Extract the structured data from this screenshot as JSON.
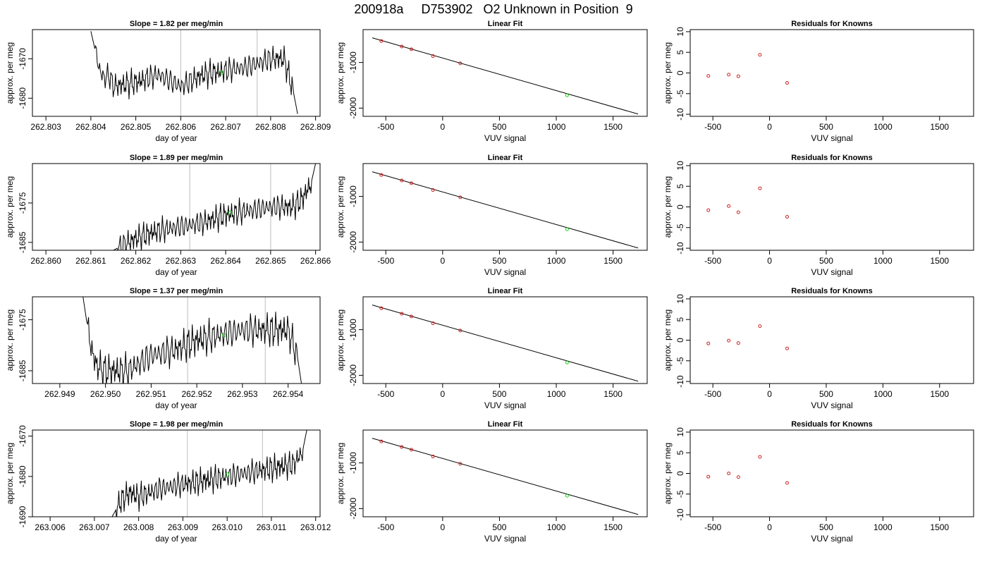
{
  "figure": {
    "title": "200918a     D753902   O2 Unknown in Position  9"
  },
  "colors": {
    "trace": "#000000",
    "known": "#cc2222",
    "unknown": "#22cc22",
    "gridline": "#c8c8c8",
    "fit": "#000000"
  },
  "chart_data": [
    {
      "type": "line",
      "row": 1,
      "col": 1,
      "title": "Slope =  1.82  per meg/min",
      "xlabel": "day of year",
      "ylabel": "approx. per meg",
      "xlim": [
        262.8027,
        262.8091
      ],
      "ylim": [
        -1684.6,
        -1662.6
      ],
      "xticks": [
        "262.803",
        "262.804",
        "262.805",
        "262.806",
        "262.807",
        "262.808",
        "262.809"
      ],
      "yticks": [
        "-1680",
        "-1670"
      ],
      "vlines": [
        262.806,
        262.8077
      ],
      "series": [
        {
          "x": [
            262.804,
            262.8041,
            262.8042,
            262.8043,
            262.8044,
            262.8045,
            262.805,
            262.8055,
            262.806,
            262.8065,
            262.807,
            262.8075,
            262.808,
            262.8083,
            262.8085,
            262.8086
          ],
          "y": [
            -1663,
            -1668,
            -1673,
            -1675,
            -1674,
            -1677,
            -1676,
            -1674,
            -1677,
            -1674,
            -1673,
            -1672,
            -1670,
            -1670,
            -1678,
            -1684
          ]
        }
      ],
      "unknown_point": {
        "x": 262.8069,
        "y": -1673.5
      }
    },
    {
      "type": "scatter",
      "row": 1,
      "col": 2,
      "title": "Linear Fit",
      "xlabel": "VUV signal",
      "ylabel": "approx. per meg",
      "xlim": [
        -700,
        1800
      ],
      "ylim": [
        -2180,
        -280
      ],
      "xticks": [
        "-500",
        "0",
        "500",
        "1000",
        "1500"
      ],
      "yticks": [
        "-1000",
        "-2000"
      ],
      "knowns": {
        "x": [
          -540,
          -360,
          -275,
          -85,
          155
        ],
        "y": [
          -530,
          -650,
          -710,
          -860,
          -1020
        ]
      },
      "unknown": {
        "x": 1095,
        "y": -1720
      },
      "fit_line": {
        "x": [
          -620,
          1720
        ],
        "y": [
          -460,
          -2130
        ]
      }
    },
    {
      "type": "scatter",
      "row": 1,
      "col": 3,
      "title": "Residuals for Knowns",
      "xlabel": "VUV signal",
      "ylabel": "approx. per meg",
      "xlim": [
        -700,
        1800
      ],
      "ylim": [
        -10.5,
        10.5
      ],
      "xticks": [
        "-500",
        "0",
        "500",
        "1000",
        "1500"
      ],
      "yticks": [
        "-10",
        "-5",
        "0",
        "5",
        "10"
      ],
      "knowns": {
        "x": [
          -540,
          -360,
          -275,
          -85,
          155
        ],
        "y": [
          -0.7,
          -0.4,
          -0.8,
          4.4,
          -2.4
        ]
      }
    },
    {
      "type": "line",
      "row": 2,
      "col": 1,
      "title": "Slope =  1.89  per meg/min",
      "xlabel": "day of year",
      "ylabel": "approx. per meg",
      "xlim": [
        262.8597,
        262.8661
      ],
      "ylim": [
        -1687,
        -1665
      ],
      "xticks": [
        "262.860",
        "262.861",
        "262.862",
        "262.863",
        "262.864",
        "262.865",
        "262.866"
      ],
      "yticks": [
        "-1685",
        "-1675"
      ],
      "vlines": [
        262.8632,
        262.865
      ],
      "series": [
        {
          "x": [
            262.8615,
            262.862,
            262.8625,
            262.863,
            262.8635,
            262.864,
            262.8645,
            262.865,
            262.8655,
            262.8657,
            262.8659,
            262.866
          ],
          "y": [
            -1687,
            -1684,
            -1682,
            -1681,
            -1680,
            -1678,
            -1677,
            -1676,
            -1676,
            -1674,
            -1670,
            -1665
          ]
        }
      ],
      "unknown_point": {
        "x": 262.8641,
        "y": -1677.5
      }
    },
    {
      "type": "scatter",
      "row": 2,
      "col": 2,
      "title": "Linear Fit",
      "xlabel": "VUV signal",
      "ylabel": "approx. per meg",
      "xlim": [
        -700,
        1800
      ],
      "ylim": [
        -2180,
        -280
      ],
      "xticks": [
        "-500",
        "0",
        "500",
        "1000",
        "1500"
      ],
      "yticks": [
        "-1000",
        "-2000"
      ],
      "knowns": {
        "x": [
          -540,
          -360,
          -275,
          -85,
          155
        ],
        "y": [
          -530,
          -650,
          -710,
          -860,
          -1020
        ]
      },
      "unknown": {
        "x": 1095,
        "y": -1720
      },
      "fit_line": {
        "x": [
          -620,
          1720
        ],
        "y": [
          -460,
          -2130
        ]
      }
    },
    {
      "type": "scatter",
      "row": 2,
      "col": 3,
      "title": "Residuals for Knowns",
      "xlabel": "VUV signal",
      "ylabel": "approx. per meg",
      "xlim": [
        -700,
        1800
      ],
      "ylim": [
        -10.5,
        10.5
      ],
      "xticks": [
        "-500",
        "0",
        "500",
        "1000",
        "1500"
      ],
      "yticks": [
        "-10",
        "-5",
        "0",
        "5",
        "10"
      ],
      "knowns": {
        "x": [
          -540,
          -360,
          -275,
          -85,
          155
        ],
        "y": [
          -0.8,
          0.2,
          -1.3,
          4.5,
          -2.4
        ]
      }
    },
    {
      "type": "line",
      "row": 3,
      "col": 1,
      "title": "Slope =  1.37  per meg/min",
      "xlabel": "day of year",
      "ylabel": "approx. per meg",
      "xlim": [
        262.9484,
        262.9547
      ],
      "ylim": [
        -1687.5,
        -1670.5
      ],
      "xticks": [
        "262.949",
        "262.950",
        "262.951",
        "262.952",
        "262.953",
        "262.954"
      ],
      "yticks": [
        "-1685",
        "-1675"
      ],
      "vlines": [
        262.9518,
        262.9535
      ],
      "series": [
        {
          "x": [
            262.9495,
            262.9496,
            262.9497,
            262.9498,
            262.95,
            262.9505,
            262.951,
            262.9515,
            262.952,
            262.9525,
            262.953,
            262.9535,
            262.954,
            262.9542,
            262.9543
          ],
          "y": [
            -1670,
            -1676,
            -1681,
            -1684,
            -1685,
            -1685,
            -1682,
            -1681,
            -1679,
            -1678,
            -1677,
            -1677,
            -1677,
            -1682,
            -1688
          ]
        }
      ],
      "unknown_point": {
        "x": 262.9526,
        "y": -1678
      }
    },
    {
      "type": "scatter",
      "row": 3,
      "col": 2,
      "title": "Linear Fit",
      "xlabel": "VUV signal",
      "ylabel": "approx. per meg",
      "xlim": [
        -700,
        1800
      ],
      "ylim": [
        -2180,
        -280
      ],
      "xticks": [
        "-500",
        "0",
        "500",
        "1000",
        "1500"
      ],
      "yticks": [
        "-1000",
        "-2000"
      ],
      "knowns": {
        "x": [
          -540,
          -360,
          -275,
          -85,
          155
        ],
        "y": [
          -530,
          -650,
          -710,
          -860,
          -1020
        ]
      },
      "unknown": {
        "x": 1095,
        "y": -1720
      },
      "fit_line": {
        "x": [
          -620,
          1720
        ],
        "y": [
          -460,
          -2130
        ]
      }
    },
    {
      "type": "scatter",
      "row": 3,
      "col": 3,
      "title": "Residuals for Knowns",
      "xlabel": "VUV signal",
      "ylabel": "approx. per meg",
      "xlim": [
        -700,
        1800
      ],
      "ylim": [
        -10.5,
        10.5
      ],
      "xticks": [
        "-500",
        "0",
        "500",
        "1000",
        "1500"
      ],
      "yticks": [
        "-10",
        "-5",
        "0",
        "5",
        "10"
      ],
      "knowns": {
        "x": [
          -540,
          -360,
          -275,
          -85,
          155
        ],
        "y": [
          -0.8,
          -0.1,
          -0.7,
          3.4,
          -2.0
        ]
      }
    },
    {
      "type": "line",
      "row": 4,
      "col": 1,
      "title": "Slope =  1.98  per meg/min",
      "xlabel": "day of year",
      "ylabel": "approx. per meg",
      "xlim": [
        263.0056,
        263.0121
      ],
      "ylim": [
        -1690,
        -1668.5
      ],
      "xticks": [
        "263.006",
        "263.007",
        "263.008",
        "263.009",
        "263.010",
        "263.011",
        "263.012"
      ],
      "yticks": [
        "-1690",
        "-1680",
        "-1670"
      ],
      "vlines": [
        263.0091,
        263.0108
      ],
      "series": [
        {
          "x": [
            263.0074,
            263.0076,
            263.0078,
            263.008,
            263.0085,
            263.009,
            263.0095,
            263.01,
            263.0105,
            263.011,
            263.0115,
            263.0117,
            263.0118
          ],
          "y": [
            -1690,
            -1686,
            -1684,
            -1685,
            -1683,
            -1682,
            -1681,
            -1680,
            -1679,
            -1678,
            -1677,
            -1674,
            -1668.5
          ]
        }
      ],
      "unknown_point": {
        "x": 263.01,
        "y": -1679.5
      }
    },
    {
      "type": "scatter",
      "row": 4,
      "col": 2,
      "title": "Linear Fit",
      "xlabel": "VUV signal",
      "ylabel": "approx. per meg",
      "xlim": [
        -700,
        1800
      ],
      "ylim": [
        -2180,
        -280
      ],
      "xticks": [
        "-500",
        "0",
        "500",
        "1000",
        "1500"
      ],
      "yticks": [
        "-1000",
        "-2000"
      ],
      "knowns": {
        "x": [
          -540,
          -360,
          -275,
          -85,
          155
        ],
        "y": [
          -530,
          -650,
          -710,
          -860,
          -1020
        ]
      },
      "unknown": {
        "x": 1095,
        "y": -1720
      },
      "fit_line": {
        "x": [
          -620,
          1720
        ],
        "y": [
          -460,
          -2130
        ]
      }
    },
    {
      "type": "scatter",
      "row": 4,
      "col": 3,
      "title": "Residuals for Knowns",
      "xlabel": "VUV signal",
      "ylabel": "approx. per meg",
      "xlim": [
        -700,
        1800
      ],
      "ylim": [
        -10.5,
        10.5
      ],
      "xticks": [
        "-500",
        "0",
        "500",
        "1000",
        "1500"
      ],
      "yticks": [
        "-10",
        "-5",
        "0",
        "5",
        "10"
      ],
      "knowns": {
        "x": [
          -540,
          -360,
          -275,
          -85,
          155
        ],
        "y": [
          -0.8,
          0.0,
          -0.9,
          4.0,
          -2.3
        ]
      }
    }
  ]
}
